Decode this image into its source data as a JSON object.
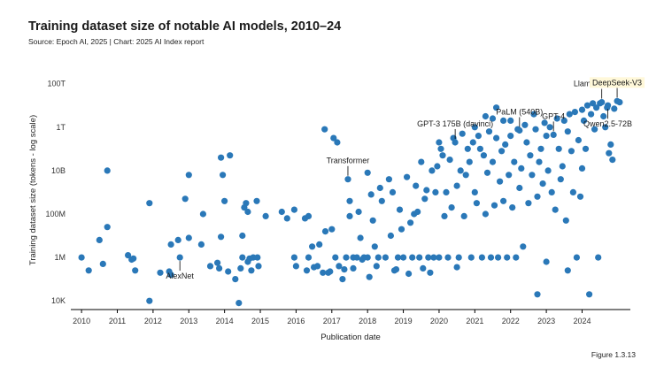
{
  "title": "Training dataset size of notable AI models, 2010–24",
  "source": "Source: Epoch AI, 2025 | Chart: 2025 AI Index report",
  "figure_label": "Figure 1.3.13",
  "colors": {
    "point": "#2a78b8",
    "axis": "#000000",
    "text": "#1a1a1a",
    "highlight": "#fff8d9"
  },
  "chart_data": {
    "type": "scatter",
    "title": "Training dataset size of notable AI models, 2010–24",
    "xlabel": "Publication date",
    "ylabel": "Training dataset size (tokens - log scale)",
    "xlim": [
      2009.7,
      2025.35
    ],
    "ylim_log10": [
      3.6,
      15.25
    ],
    "x_ticks": [
      {
        "value": 2010,
        "label": "2010"
      },
      {
        "value": 2011,
        "label": "2011"
      },
      {
        "value": 2012,
        "label": "2012"
      },
      {
        "value": 2013,
        "label": "2013"
      },
      {
        "value": 2014,
        "label": "2014"
      },
      {
        "value": 2015,
        "label": "2015"
      },
      {
        "value": 2016,
        "label": "2016"
      },
      {
        "value": 2017,
        "label": "2017"
      },
      {
        "value": 2018,
        "label": "2018"
      },
      {
        "value": 2019,
        "label": "2019"
      },
      {
        "value": 2020,
        "label": "2020"
      },
      {
        "value": 2021,
        "label": "2021"
      },
      {
        "value": 2022,
        "label": "2022"
      },
      {
        "value": 2023,
        "label": "2023"
      },
      {
        "value": 2024,
        "label": "2024"
      }
    ],
    "y_ticks": [
      {
        "log10": 4,
        "label": "10K"
      },
      {
        "log10": 6,
        "label": "1M"
      },
      {
        "log10": 8,
        "label": "100M"
      },
      {
        "log10": 10,
        "label": "10B"
      },
      {
        "log10": 12,
        "label": "1T"
      },
      {
        "log10": 14,
        "label": "100T"
      }
    ],
    "annotations": [
      {
        "label": "AlexNet",
        "x": 2012.75,
        "log10": 6.0,
        "anchor": "below"
      },
      {
        "label": "Transformer",
        "x": 2017.45,
        "log10": 9.6,
        "anchor": "above"
      },
      {
        "label": "GPT-3 175B (davinci)",
        "x": 2020.45,
        "log10": 11.3,
        "anchor": "above"
      },
      {
        "label": "PaLM (540B)",
        "x": 2022.25,
        "log10": 11.85,
        "anchor": "above"
      },
      {
        "label": "GPT-4",
        "x": 2023.2,
        "log10": 11.65,
        "anchor": "above"
      },
      {
        "label": "Llama 3.1-405B",
        "x": 2024.55,
        "log10": 13.15,
        "anchor": "above"
      },
      {
        "label": "Qwen2.5-72B",
        "x": 2024.72,
        "log10": 13.0,
        "anchor": "below"
      },
      {
        "label": "DeepSeek-V3",
        "x": 2024.98,
        "log10": 13.2,
        "anchor": "above",
        "highlight": true
      }
    ],
    "points": [
      [
        2010.0,
        6.0
      ],
      [
        2010.2,
        5.4
      ],
      [
        2010.5,
        6.8
      ],
      [
        2010.6,
        5.7
      ],
      [
        2010.72,
        7.4
      ],
      [
        2010.72,
        10.0
      ],
      [
        2011.3,
        6.1
      ],
      [
        2011.4,
        5.9
      ],
      [
        2011.45,
        5.95
      ],
      [
        2011.5,
        5.4
      ],
      [
        2011.9,
        4.0
      ],
      [
        2011.9,
        8.5
      ],
      [
        2012.2,
        5.3
      ],
      [
        2012.45,
        5.35
      ],
      [
        2012.5,
        5.2
      ],
      [
        2012.5,
        6.6
      ],
      [
        2012.75,
        6.0
      ],
      [
        2012.7,
        6.8
      ],
      [
        2012.9,
        8.7
      ],
      [
        2013.0,
        6.9
      ],
      [
        2013.0,
        9.8
      ],
      [
        2013.35,
        6.6
      ],
      [
        2013.4,
        8.0
      ],
      [
        2013.6,
        5.6
      ],
      [
        2013.8,
        5.75
      ],
      [
        2013.85,
        5.5
      ],
      [
        2013.9,
        6.95
      ],
      [
        2013.9,
        10.6
      ],
      [
        2013.95,
        9.8
      ],
      [
        2014.0,
        8.6
      ],
      [
        2014.1,
        5.35
      ],
      [
        2014.15,
        10.7
      ],
      [
        2014.3,
        5.0
      ],
      [
        2014.4,
        3.9
      ],
      [
        2014.45,
        5.5
      ],
      [
        2014.5,
        6.0
      ],
      [
        2014.5,
        7.0
      ],
      [
        2014.55,
        8.3
      ],
      [
        2014.6,
        8.5
      ],
      [
        2014.65,
        8.1
      ],
      [
        2014.65,
        5.8
      ],
      [
        2014.7,
        5.95
      ],
      [
        2014.75,
        5.4
      ],
      [
        2014.8,
        6.0
      ],
      [
        2014.9,
        8.6
      ],
      [
        2014.92,
        6.0
      ],
      [
        2014.95,
        5.6
      ],
      [
        2015.15,
        7.9
      ],
      [
        2015.6,
        8.1
      ],
      [
        2015.75,
        7.8
      ],
      [
        2015.95,
        6.0
      ],
      [
        2015.95,
        8.2
      ],
      [
        2016.0,
        5.6
      ],
      [
        2016.25,
        7.8
      ],
      [
        2016.3,
        5.4
      ],
      [
        2016.35,
        6.0
      ],
      [
        2016.35,
        7.9
      ],
      [
        2016.45,
        6.5
      ],
      [
        2016.5,
        5.55
      ],
      [
        2016.6,
        5.6
      ],
      [
        2016.65,
        6.6
      ],
      [
        2016.75,
        5.3
      ],
      [
        2016.8,
        11.9
      ],
      [
        2016.82,
        7.2
      ],
      [
        2016.9,
        5.3
      ],
      [
        2016.95,
        5.35
      ],
      [
        2017.05,
        11.5
      ],
      [
        2017.0,
        7.3
      ],
      [
        2017.1,
        6.0
      ],
      [
        2017.15,
        11.3
      ],
      [
        2017.2,
        5.6
      ],
      [
        2017.3,
        5.0
      ],
      [
        2017.35,
        5.45
      ],
      [
        2017.4,
        6.0
      ],
      [
        2017.45,
        9.6
      ],
      [
        2017.5,
        8.6
      ],
      [
        2017.5,
        7.9
      ],
      [
        2017.6,
        5.5
      ],
      [
        2017.6,
        6.0
      ],
      [
        2017.7,
        6.0
      ],
      [
        2017.75,
        8.1
      ],
      [
        2017.8,
        6.9
      ],
      [
        2017.85,
        5.9
      ],
      [
        2017.9,
        6.0
      ],
      [
        2018.0,
        9.9
      ],
      [
        2018.0,
        6.0
      ],
      [
        2018.05,
        5.1
      ],
      [
        2018.1,
        8.9
      ],
      [
        2018.15,
        7.7
      ],
      [
        2018.2,
        6.5
      ],
      [
        2018.25,
        5.6
      ],
      [
        2018.3,
        6.0
      ],
      [
        2018.35,
        9.2
      ],
      [
        2018.4,
        8.6
      ],
      [
        2018.5,
        6.0
      ],
      [
        2018.6,
        9.6
      ],
      [
        2018.65,
        7.0
      ],
      [
        2018.7,
        9.0
      ],
      [
        2018.75,
        5.4
      ],
      [
        2018.8,
        5.45
      ],
      [
        2018.85,
        6.0
      ],
      [
        2018.9,
        8.2
      ],
      [
        2018.95,
        7.3
      ],
      [
        2019.0,
        6.0
      ],
      [
        2019.1,
        9.7
      ],
      [
        2019.15,
        5.25
      ],
      [
        2019.2,
        7.6
      ],
      [
        2019.25,
        6.0
      ],
      [
        2019.3,
        8.0
      ],
      [
        2019.35,
        9.3
      ],
      [
        2019.4,
        8.1
      ],
      [
        2019.45,
        6.0
      ],
      [
        2019.5,
        10.4
      ],
      [
        2019.55,
        5.5
      ],
      [
        2019.6,
        8.7
      ],
      [
        2019.65,
        9.1
      ],
      [
        2019.7,
        6.0
      ],
      [
        2019.75,
        5.3
      ],
      [
        2019.8,
        10.0
      ],
      [
        2019.85,
        6.0
      ],
      [
        2019.9,
        9.0
      ],
      [
        2019.95,
        10.2
      ],
      [
        2020.0,
        6.0
      ],
      [
        2020.0,
        11.3
      ],
      [
        2020.05,
        11.0
      ],
      [
        2020.1,
        10.7
      ],
      [
        2020.15,
        7.9
      ],
      [
        2020.2,
        9.0
      ],
      [
        2020.25,
        6.0
      ],
      [
        2020.3,
        10.5
      ],
      [
        2020.35,
        8.3
      ],
      [
        2020.4,
        11.5
      ],
      [
        2020.45,
        11.3
      ],
      [
        2020.5,
        9.3
      ],
      [
        2020.5,
        5.55
      ],
      [
        2020.55,
        6.0
      ],
      [
        2020.6,
        10.0
      ],
      [
        2020.65,
        11.7
      ],
      [
        2020.7,
        7.9
      ],
      [
        2020.75,
        9.8
      ],
      [
        2020.8,
        11.0
      ],
      [
        2020.85,
        10.4
      ],
      [
        2020.9,
        6.0
      ],
      [
        2020.95,
        11.3
      ],
      [
        2021.0,
        12.0
      ],
      [
        2021.0,
        9.0
      ],
      [
        2021.05,
        8.5
      ],
      [
        2021.1,
        11.6
      ],
      [
        2021.15,
        11.0
      ],
      [
        2021.2,
        6.0
      ],
      [
        2021.25,
        10.7
      ],
      [
        2021.3,
        12.5
      ],
      [
        2021.3,
        8.0
      ],
      [
        2021.35,
        9.9
      ],
      [
        2021.4,
        11.8
      ],
      [
        2021.45,
        6.0
      ],
      [
        2021.5,
        12.4
      ],
      [
        2021.5,
        10.4
      ],
      [
        2021.55,
        8.4
      ],
      [
        2021.6,
        12.9
      ],
      [
        2021.6,
        11.5
      ],
      [
        2021.65,
        6.0
      ],
      [
        2021.7,
        9.5
      ],
      [
        2021.75,
        10.9
      ],
      [
        2021.8,
        12.3
      ],
      [
        2021.8,
        8.6
      ],
      [
        2021.85,
        11.2
      ],
      [
        2021.9,
        6.0
      ],
      [
        2021.95,
        9.8
      ],
      [
        2022.0,
        12.3
      ],
      [
        2022.0,
        11.6
      ],
      [
        2022.05,
        8.3
      ],
      [
        2022.1,
        10.4
      ],
      [
        2022.15,
        6.0
      ],
      [
        2022.2,
        11.9
      ],
      [
        2022.25,
        11.85
      ],
      [
        2022.25,
        9.2
      ],
      [
        2022.3,
        10.1
      ],
      [
        2022.35,
        6.5
      ],
      [
        2022.4,
        12.1
      ],
      [
        2022.45,
        11.3
      ],
      [
        2022.5,
        8.5
      ],
      [
        2022.55,
        10.7
      ],
      [
        2022.6,
        9.8
      ],
      [
        2022.65,
        12.6
      ],
      [
        2022.7,
        11.9
      ],
      [
        2022.75,
        8.8
      ],
      [
        2022.75,
        4.3
      ],
      [
        2022.8,
        10.4
      ],
      [
        2022.85,
        11.0
      ],
      [
        2022.9,
        9.4
      ],
      [
        2022.95,
        12.2
      ],
      [
        2023.0,
        11.6
      ],
      [
        2023.0,
        5.8
      ],
      [
        2023.05,
        10.0
      ],
      [
        2023.1,
        12.0
      ],
      [
        2023.15,
        9.0
      ],
      [
        2023.2,
        11.65
      ],
      [
        2023.25,
        8.2
      ],
      [
        2023.3,
        12.4
      ],
      [
        2023.35,
        11.0
      ],
      [
        2023.4,
        9.6
      ],
      [
        2023.45,
        10.2
      ],
      [
        2023.5,
        12.3
      ],
      [
        2023.55,
        7.7
      ],
      [
        2023.6,
        11.8
      ],
      [
        2023.6,
        5.4
      ],
      [
        2023.65,
        12.6
      ],
      [
        2023.7,
        10.9
      ],
      [
        2023.75,
        9.0
      ],
      [
        2023.8,
        12.7
      ],
      [
        2023.85,
        6.0
      ],
      [
        2023.9,
        11.4
      ],
      [
        2023.95,
        8.8
      ],
      [
        2024.0,
        12.8
      ],
      [
        2024.0,
        10.1
      ],
      [
        2024.05,
        12.3
      ],
      [
        2024.1,
        11.0
      ],
      [
        2024.15,
        13.0
      ],
      [
        2024.2,
        4.3
      ],
      [
        2024.25,
        12.6
      ],
      [
        2024.3,
        13.1
      ],
      [
        2024.35,
        11.9
      ],
      [
        2024.4,
        12.9
      ],
      [
        2024.45,
        6.0
      ],
      [
        2024.5,
        13.1
      ],
      [
        2024.55,
        13.15
      ],
      [
        2024.6,
        12.5
      ],
      [
        2024.65,
        12.0
      ],
      [
        2024.7,
        12.9
      ],
      [
        2024.72,
        13.0
      ],
      [
        2024.75,
        10.8
      ],
      [
        2024.8,
        11.2
      ],
      [
        2024.85,
        10.5
      ],
      [
        2024.9,
        12.85
      ],
      [
        2024.98,
        13.2
      ],
      [
        2025.05,
        13.15
      ]
    ]
  }
}
